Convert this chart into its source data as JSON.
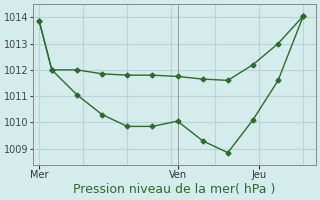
{
  "line1_x": [
    0,
    1,
    3,
    5,
    7,
    9,
    11,
    13,
    15,
    17,
    19,
    21
  ],
  "line1_y": [
    1013.85,
    1012.0,
    1012.0,
    1011.85,
    1011.8,
    1011.8,
    1011.75,
    1011.65,
    1011.6,
    1012.2,
    1013.0,
    1014.05
  ],
  "line2_x": [
    0,
    1,
    3,
    5,
    7,
    9,
    11,
    13,
    15,
    17,
    19,
    21
  ],
  "line2_y": [
    1013.85,
    1012.0,
    1011.05,
    1010.3,
    1009.85,
    1009.85,
    1010.05,
    1009.3,
    1008.85,
    1010.1,
    1011.6,
    1014.05
  ],
  "line_color": "#2d6a2d",
  "background_color": "#d4ecec",
  "grid_color": "#b8d4d4",
  "tick_labels_x": [
    [
      "Mer",
      0
    ],
    [
      "Ven",
      11
    ],
    [
      "Jeu",
      17.5
    ]
  ],
  "vline_x": 11,
  "ylabel_ticks": [
    1009,
    1010,
    1011,
    1012,
    1013,
    1014
  ],
  "grid_x_positions": [
    0,
    3.5,
    7,
    10.5,
    14,
    17.5,
    21
  ],
  "ylim": [
    1008.4,
    1014.5
  ],
  "xlim": [
    -0.5,
    22
  ],
  "xlabel": "Pression niveau de la mer( hPa )",
  "xlabel_color": "#2d6a2d",
  "xlabel_fontsize": 9,
  "tick_fontsize": 7,
  "marker": "D",
  "marker_size": 2.5,
  "line_width": 1.0
}
